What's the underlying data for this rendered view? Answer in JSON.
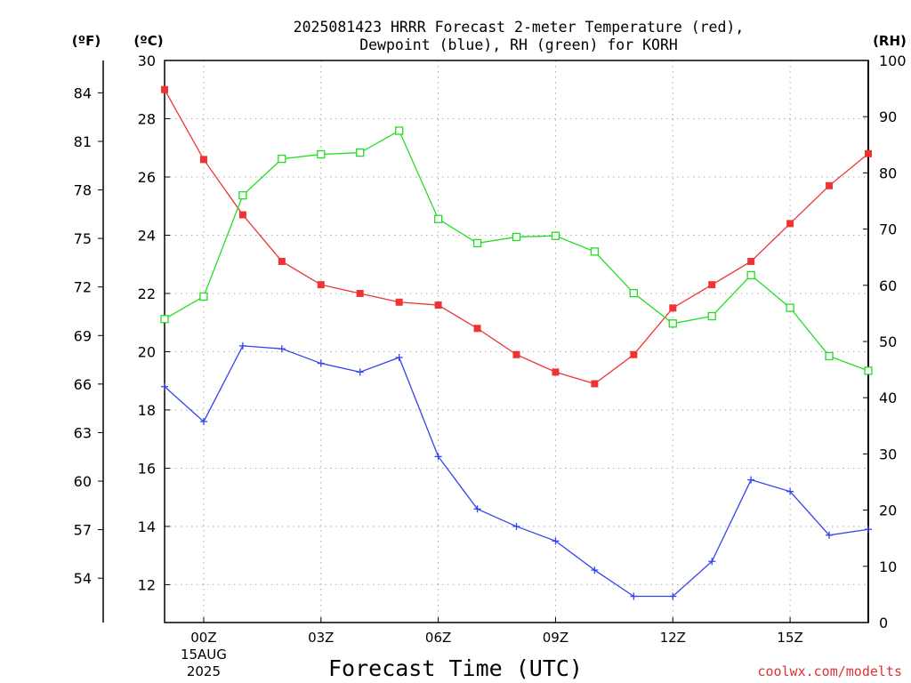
{
  "chart_data": {
    "type": "line",
    "title_line1": "2025081423 HRRR Forecast 2-meter Temperature (red),",
    "title_line2": "Dewpoint (blue), RH (green) for KORH",
    "xlabel": "Forecast Time (UTC)",
    "credit": "coolwx.com/modelts",
    "unit_labels": {
      "fahrenheit": "(ºF)",
      "celsius": "(ºC)",
      "rh": "(RH)"
    },
    "x_ticks": [
      {
        "hour": 0,
        "label": "00Z",
        "sublabel1": "15AUG",
        "sublabel2": "2025"
      },
      {
        "hour": 3,
        "label": "03Z"
      },
      {
        "hour": 6,
        "label": "06Z"
      },
      {
        "hour": 9,
        "label": "09Z"
      },
      {
        "hour": 12,
        "label": "12Z"
      },
      {
        "hour": 15,
        "label": "15Z"
      }
    ],
    "xlim": [
      -1,
      17
    ],
    "celsius_axis": {
      "ylim": [
        10.7,
        30
      ],
      "ticks": [
        "12",
        "14",
        "16",
        "18",
        "20",
        "22",
        "24",
        "26",
        "28",
        "30"
      ]
    },
    "fahrenheit_axis": {
      "ticks": [
        "54",
        "57",
        "60",
        "63",
        "66",
        "69",
        "72",
        "75",
        "78",
        "81",
        "84"
      ]
    },
    "rh_axis": {
      "ylim": [
        0,
        100
      ],
      "ticks": [
        "0",
        "10",
        "20",
        "30",
        "40",
        "50",
        "60",
        "70",
        "80",
        "90",
        "100"
      ]
    },
    "hours": [
      -1,
      0,
      1,
      2,
      3,
      4,
      5,
      6,
      7,
      8,
      9,
      10,
      11,
      12,
      13,
      14,
      15,
      16,
      17
    ],
    "series": [
      {
        "name": "Temperature",
        "axis": "celsius",
        "color": "#ee3333",
        "marker": "filled-square",
        "values": [
          29.0,
          26.6,
          24.7,
          23.1,
          22.3,
          22.0,
          21.7,
          21.6,
          20.8,
          19.9,
          19.3,
          18.9,
          19.9,
          21.5,
          22.3,
          23.1,
          24.4,
          25.7,
          26.8
        ]
      },
      {
        "name": "Dewpoint",
        "axis": "celsius",
        "color": "#3344ee",
        "marker": "plus",
        "values": [
          18.8,
          17.6,
          20.2,
          20.1,
          19.6,
          19.3,
          19.8,
          16.4,
          14.6,
          14.0,
          13.5,
          12.5,
          11.6,
          11.6,
          12.8,
          15.6,
          15.2,
          13.7,
          13.9
        ]
      },
      {
        "name": "RH",
        "axis": "rh",
        "color": "#22dd22",
        "marker": "open-square",
        "values": [
          54.0,
          58.0,
          76.0,
          82.5,
          83.3,
          83.6,
          87.5,
          71.8,
          67.5,
          68.6,
          68.8,
          66.0,
          58.6,
          53.2,
          54.5,
          61.8,
          56.0,
          47.4,
          44.8
        ]
      }
    ]
  }
}
